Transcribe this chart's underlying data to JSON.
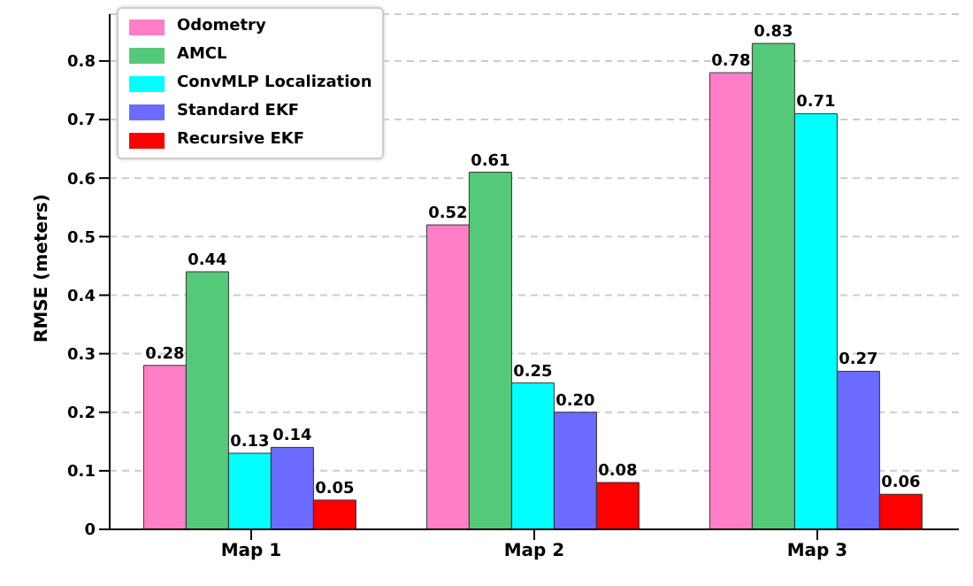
{
  "chart_data": {
    "type": "bar",
    "ylabel": "RMSE (meters)",
    "categories": [
      "Map 1",
      "Map 2",
      "Map 3"
    ],
    "series": [
      {
        "name": "Odometry",
        "color": "#ff7fc6",
        "values": [
          0.28,
          0.52,
          0.78
        ],
        "value_labels": [
          "0.28",
          "0.52",
          "0.78"
        ]
      },
      {
        "name": "AMCL",
        "color": "#55c97a",
        "values": [
          0.44,
          0.61,
          0.83
        ],
        "value_labels": [
          "0.44",
          "0.61",
          "0.83"
        ]
      },
      {
        "name": "ConvMLP Localization",
        "color": "#00ffff",
        "values": [
          0.13,
          0.25,
          0.71
        ],
        "value_labels": [
          "0.13",
          "0.25",
          "0.71"
        ]
      },
      {
        "name": "Standard EKF",
        "color": "#6b6bff",
        "values": [
          0.14,
          0.2,
          0.27
        ],
        "value_labels": [
          "0.14",
          "0.20",
          "0.27"
        ]
      },
      {
        "name": "Recursive EKF",
        "color": "#ff0000",
        "values": [
          0.05,
          0.08,
          0.06
        ],
        "value_labels": [
          "0.05",
          "0.08",
          "0.06"
        ]
      }
    ],
    "ylim": [
      0,
      0.88
    ],
    "yticks": [
      0,
      0.1,
      0.2,
      0.3,
      0.4,
      0.5,
      0.6,
      0.7,
      0.8
    ],
    "grid": "y",
    "legend": "top left"
  }
}
